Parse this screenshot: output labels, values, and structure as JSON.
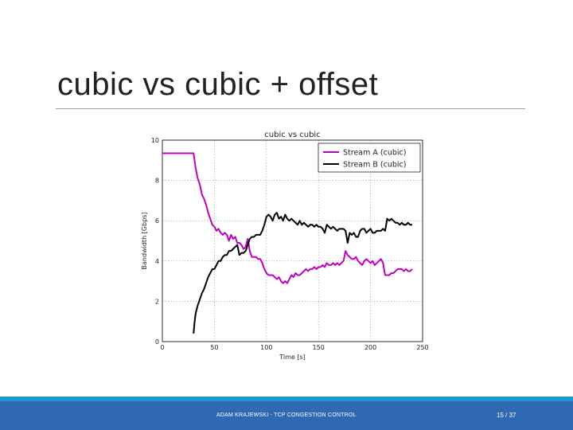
{
  "slide": {
    "title": "cubic vs cubic + offset",
    "footer_text": "ADAM KRAJEWSKI - TCP CONGESTION CONTROL",
    "page_number": "15 / 37",
    "colors": {
      "footer": "#2f68b3",
      "footer_band": "#1d9ad6",
      "rule": "#a0a0a0"
    }
  },
  "chart_data": {
    "type": "line",
    "title": "cubic vs cubic",
    "xlabel": "Time [s]",
    "ylabel": "Bandwidth [Gbps]",
    "xlim": [
      0,
      250
    ],
    "ylim": [
      0,
      10
    ],
    "xticks": [
      "0",
      "50",
      "100",
      "150",
      "200",
      "250"
    ],
    "yticks": [
      "0",
      "2",
      "4",
      "6",
      "8",
      "10"
    ],
    "grid": true,
    "legend_position": "top-right",
    "series": [
      {
        "name": "Stream A (cubic)",
        "color": "#bf00bf",
        "x": [
          0,
          28,
          30,
          32,
          34,
          36,
          38,
          40,
          42,
          44,
          46,
          48,
          50,
          52,
          54,
          56,
          58,
          60,
          62,
          64,
          66,
          68,
          70,
          72,
          74,
          76,
          78,
          80,
          82,
          84,
          86,
          88,
          90,
          92,
          94,
          96,
          98,
          100,
          102,
          104,
          106,
          108,
          110,
          112,
          114,
          116,
          118,
          120,
          122,
          124,
          126,
          128,
          130,
          132,
          134,
          136,
          138,
          140,
          142,
          144,
          146,
          148,
          150,
          152,
          154,
          156,
          158,
          160,
          162,
          164,
          166,
          168,
          170,
          172,
          174,
          176,
          178,
          180,
          182,
          184,
          186,
          188,
          190,
          192,
          194,
          196,
          198,
          200,
          202,
          204,
          206,
          208,
          210,
          212,
          214,
          216,
          218,
          220,
          222,
          224,
          226,
          228,
          230,
          232,
          234,
          236,
          238,
          240
        ],
        "values": [
          9.35,
          9.35,
          9.35,
          8.6,
          8.1,
          7.8,
          7.3,
          7.1,
          6.8,
          6.4,
          6.1,
          5.8,
          5.7,
          5.5,
          5.6,
          5.4,
          5.3,
          5.4,
          5.3,
          5.0,
          5.3,
          5.1,
          5.2,
          4.9,
          4.9,
          4.8,
          4.6,
          4.7,
          5.1,
          4.5,
          4.2,
          4.2,
          4.2,
          4.1,
          4.1,
          3.9,
          3.6,
          3.4,
          3.3,
          3.3,
          3.3,
          3.2,
          3.1,
          3.2,
          3.0,
          2.9,
          3.0,
          2.9,
          3.1,
          3.3,
          3.2,
          3.4,
          3.3,
          3.3,
          3.4,
          3.5,
          3.6,
          3.5,
          3.6,
          3.6,
          3.7,
          3.6,
          3.7,
          3.7,
          3.8,
          3.7,
          3.9,
          3.8,
          3.8,
          3.9,
          3.8,
          3.9,
          3.8,
          3.9,
          4.0,
          4.5,
          4.3,
          4.2,
          4.1,
          4.1,
          4.2,
          4.0,
          3.9,
          3.8,
          4.0,
          4.1,
          4.0,
          3.9,
          4.0,
          3.8,
          3.9,
          4.0,
          4.1,
          3.9,
          3.3,
          3.3,
          3.3,
          3.4,
          3.4,
          3.5,
          3.6,
          3.6,
          3.6,
          3.5,
          3.6,
          3.5,
          3.5,
          3.6
        ],
        "x_start": 0
      },
      {
        "name": "Stream B (cubic)",
        "color": "#000000",
        "x": [
          30,
          31,
          32,
          34,
          36,
          38,
          40,
          42,
          44,
          46,
          48,
          50,
          52,
          54,
          56,
          58,
          60,
          62,
          64,
          66,
          68,
          70,
          72,
          74,
          76,
          78,
          80,
          82,
          84,
          86,
          88,
          90,
          92,
          94,
          96,
          98,
          100,
          102,
          104,
          106,
          108,
          110,
          112,
          114,
          116,
          118,
          120,
          122,
          124,
          126,
          128,
          130,
          132,
          134,
          136,
          138,
          140,
          142,
          144,
          146,
          148,
          150,
          152,
          154,
          156,
          158,
          160,
          162,
          164,
          166,
          168,
          170,
          172,
          174,
          176,
          178,
          180,
          182,
          184,
          186,
          188,
          190,
          192,
          194,
          196,
          198,
          200,
          202,
          204,
          206,
          208,
          210,
          212,
          214,
          216,
          218,
          220,
          222,
          224,
          226,
          228,
          230,
          232,
          234,
          236,
          238,
          240
        ],
        "values": [
          0.4,
          1.0,
          1.4,
          1.8,
          2.1,
          2.4,
          2.6,
          2.9,
          3.2,
          3.4,
          3.6,
          3.6,
          3.8,
          4.0,
          4.0,
          4.2,
          4.3,
          4.3,
          4.5,
          4.5,
          4.6,
          4.7,
          4.8,
          4.3,
          4.4,
          4.4,
          4.5,
          4.8,
          5.1,
          5.2,
          5.2,
          5.3,
          5.3,
          5.3,
          5.5,
          5.8,
          6.2,
          6.3,
          6.2,
          6.0,
          6.3,
          6.4,
          6.1,
          6.2,
          6.0,
          6.3,
          6.1,
          6.0,
          6.1,
          6.0,
          5.9,
          5.8,
          6.0,
          5.8,
          5.9,
          5.8,
          5.7,
          5.8,
          5.8,
          5.7,
          5.8,
          5.7,
          5.7,
          5.6,
          5.4,
          5.8,
          5.7,
          5.6,
          5.7,
          5.6,
          5.5,
          5.6,
          5.6,
          5.6,
          5.5,
          4.9,
          5.4,
          5.3,
          5.4,
          5.2,
          5.2,
          5.5,
          5.6,
          5.6,
          5.4,
          5.5,
          5.6,
          5.4,
          5.4,
          5.5,
          5.5,
          5.5,
          5.6,
          5.5,
          6.1,
          6.0,
          6.1,
          6.0,
          5.9,
          5.9,
          5.8,
          5.9,
          5.8,
          5.8,
          5.9,
          5.8,
          5.8
        ]
      }
    ]
  }
}
